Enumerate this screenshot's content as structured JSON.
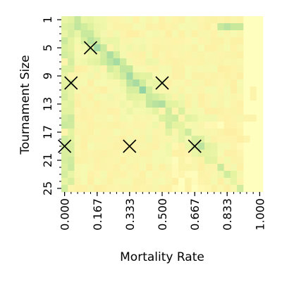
{
  "chart_data": {
    "type": "heatmap",
    "title": "",
    "xlabel": "Mortality Rate",
    "ylabel": "Tournament Size",
    "x_tick_labels": [
      "0.000",
      "0.167",
      "0.333",
      "0.500",
      "0.667",
      "0.833",
      "1.000"
    ],
    "x_tick_values": [
      0.0,
      0.167,
      0.333,
      0.5,
      0.667,
      0.833,
      1.0
    ],
    "y_tick_labels": [
      "1",
      "5",
      "9",
      "13",
      "17",
      "21",
      "25"
    ],
    "y_tick_values": [
      1,
      5,
      9,
      13,
      17,
      21,
      25
    ],
    "x_range": [
      0,
      1
    ],
    "y_range": [
      1,
      25
    ],
    "n_cols": 31,
    "n_rows": 25,
    "colormap": [
      "#fefebe",
      "#fdf0a4",
      "#f6f9b0",
      "#e4f3a0",
      "#c6e89c",
      "#9dd7a3",
      "#72c3a6"
    ],
    "value_range": [
      0,
      1
    ],
    "markers": {
      "symbol": "x",
      "color": "#000000",
      "points": [
        {
          "x": 0.133,
          "y": 5
        },
        {
          "x": 0.033,
          "y": 10
        },
        {
          "x": 0.5,
          "y": 10
        },
        {
          "x": 0.0,
          "y": 19
        },
        {
          "x": 0.333,
          "y": 19
        },
        {
          "x": 0.667,
          "y": 19
        }
      ]
    },
    "grid": false,
    "legend": "none"
  }
}
